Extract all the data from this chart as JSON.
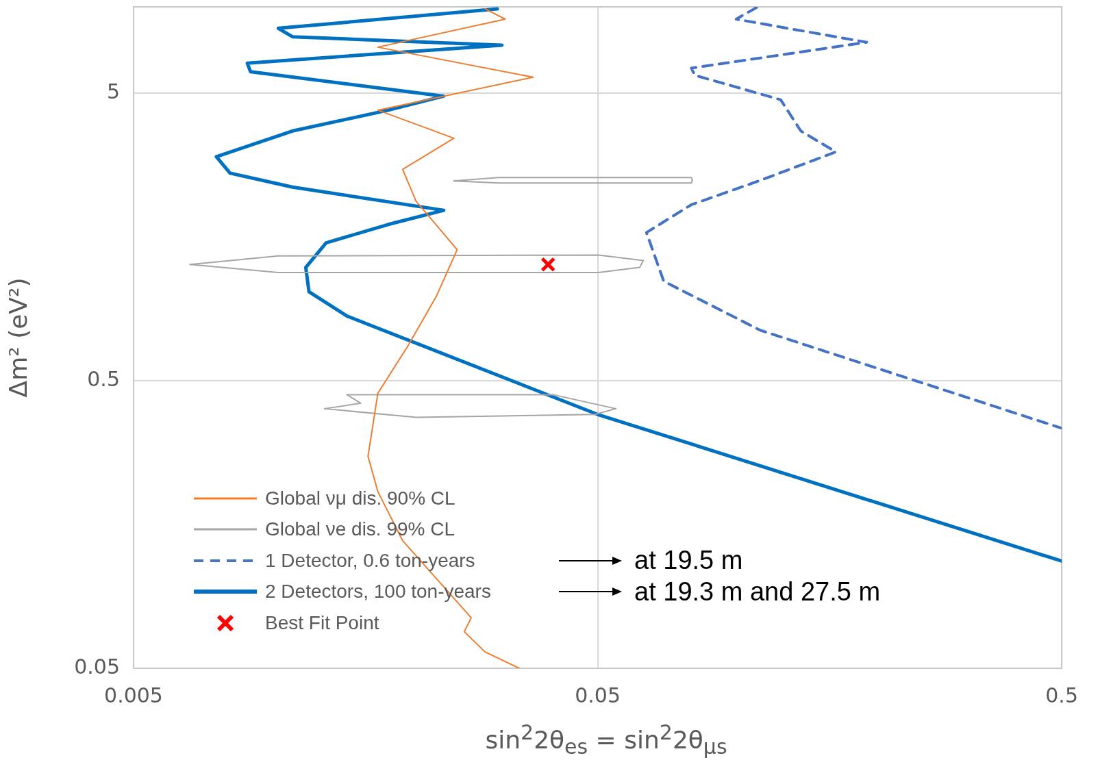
{
  "chart_data": {
    "type": "line",
    "xlabel": "sin$^{2}$2θ$_{es}$ = sin$^{2}$2θ$_{μs}$",
    "ylabel": "Δm² (eV²)",
    "log": "xy",
    "xlim": [
      0.005,
      0.5
    ],
    "ylim": [
      0.05,
      10
    ],
    "xticks": [
      0.005,
      0.05,
      0.5
    ],
    "yticks": [
      0.05,
      0.5,
      5
    ],
    "grid": true,
    "legend": "bottom left",
    "annotations": [
      "at 19.5 m",
      "at 19.3 m and 27.5 m"
    ],
    "series": [
      {
        "name": "Global νμ dis. 90% CL",
        "type": "line",
        "marker": "none",
        "line_style": "solid",
        "color": "#ed7d31",
        "x": [
          0.0286,
          0.0316,
          0.0168,
          0.0363,
          0.0168,
          0.0245,
          0.019,
          0.0203,
          0.0249,
          0.0225,
          0.0196,
          0.0168,
          0.016,
          0.0168,
          0.019,
          0.0267,
          0.0258,
          0.0286,
          0.0339
        ],
        "values": [
          9.84,
          9.06,
          7.24,
          5.69,
          4.37,
          3.49,
          2.72,
          2.11,
          1.43,
          0.99,
          0.67,
          0.452,
          0.273,
          0.206,
          0.139,
          0.075,
          0.067,
          0.057,
          0.05
        ]
      },
      {
        "name": "Global νe dis. 99% CL",
        "type": "line",
        "marker": "none",
        "line_style": "solid",
        "color": "#a5a5a5",
        "x": [
          0.0245,
          0.0306,
          0.0796,
          0.08
        ],
        "values": [
          2.48,
          2.55,
          2.55,
          2.49
        ]
      },
      {
        "type": "line",
        "marker": "none",
        "line_style": "solid",
        "color": "#a5a5a5",
        "x": [
          0.0245,
          0.0306,
          0.0796,
          0.08
        ],
        "values": [
          2.48,
          2.44,
          2.44,
          2.49
        ]
      },
      {
        "type": "line",
        "marker": "none",
        "line_style": "solid",
        "color": "#a5a5a5",
        "x": [
          0.00662,
          0.01025,
          0.0502,
          0.0627
        ],
        "values": [
          1.27,
          1.36,
          1.37,
          1.31
        ]
      },
      {
        "type": "line",
        "marker": "none",
        "line_style": "solid",
        "color": "#a5a5a5",
        "x": [
          0.00662,
          0.01025,
          0.0502,
          0.0616,
          0.0627
        ],
        "values": [
          1.27,
          1.19,
          1.19,
          1.24,
          1.31
        ]
      },
      {
        "type": "line",
        "marker": "none",
        "line_style": "solid",
        "color": "#a5a5a5",
        "x": [
          0.01442,
          0.0402,
          0.0547
        ],
        "values": [
          0.447,
          0.447,
          0.4
        ]
      },
      {
        "type": "line",
        "marker": "none",
        "line_style": "solid",
        "color": "#a5a5a5",
        "x": [
          0.0129,
          0.0203,
          0.0493,
          0.0547
        ],
        "values": [
          0.4,
          0.373,
          0.382,
          0.4
        ]
      },
      {
        "type": "line",
        "marker": "none",
        "line_style": "solid",
        "color": "#a5a5a5",
        "x": [
          0.0129,
          0.01544,
          0.01442
        ],
        "values": [
          0.4,
          0.418,
          0.447
        ]
      },
      {
        "name": "1 Detector, 0.6 ton-years",
        "type": "line",
        "marker": "none",
        "line_style": "dashed",
        "color": "#4472c4",
        "x": [
          0.11,
          0.0994,
          0.19,
          0.0796,
          0.081,
          0.124,
          0.137,
          0.163,
          0.112,
          0.0796,
          0.0637,
          0.0694,
          0.112,
          0.5
        ],
        "values": [
          9.95,
          9.06,
          7.53,
          6.12,
          5.78,
          4.75,
          3.7,
          3.13,
          2.49,
          2.05,
          1.64,
          1.11,
          0.75,
          0.342
        ]
      },
      {
        "name": "2 Detectors, 100 ton-years",
        "type": "line",
        "marker": "none",
        "line_style": "solid",
        "color": "#0070c0",
        "x": [
          0.0304,
          0.01025,
          0.011,
          0.0311,
          0.00879,
          0.00893,
          0.0233,
          0.0177,
          0.011,
          0.00754,
          0.00807,
          0.011,
          0.0233,
          0.0177,
          0.013,
          0.01175,
          0.01194,
          0.01442,
          0.05,
          0.5
        ],
        "values": [
          9.84,
          8.42,
          7.87,
          7.36,
          6.37,
          5.95,
          4.89,
          4.37,
          3.7,
          3.01,
          2.64,
          2.36,
          1.96,
          1.75,
          1.51,
          1.24,
          1.02,
          0.84,
          0.382,
          0.118
        ]
      },
      {
        "name": "Best Fit Point",
        "type": "scatter",
        "marker": "cross",
        "color": "#ff0000",
        "x": [
          0.0391
        ],
        "values": [
          1.27
        ]
      }
    ]
  }
}
